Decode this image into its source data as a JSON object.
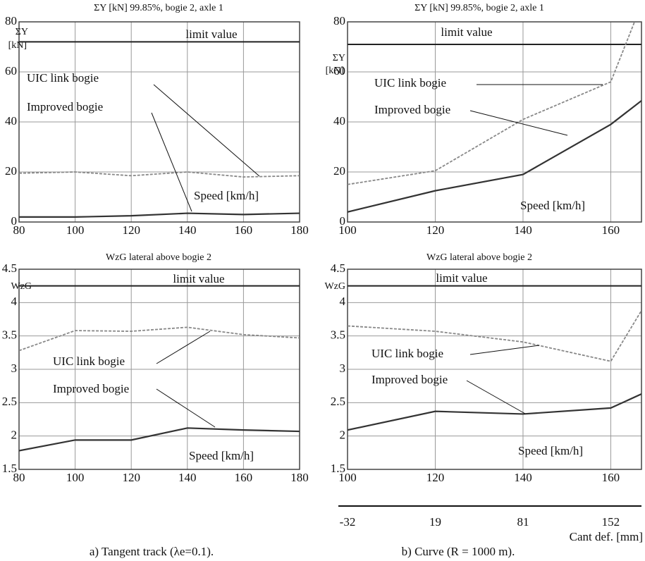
{
  "chart_data": [
    {
      "type": "line",
      "title": "ΣY [kN] 99.85%, bogie 2, axle 1",
      "y_label": [
        "ΣY",
        "[kN]"
      ],
      "x": [
        80,
        100,
        120,
        140,
        160,
        180
      ],
      "xlim": [
        80,
        180
      ],
      "xticks": [
        80,
        100,
        120,
        140,
        160,
        180
      ],
      "ylim": [
        0,
        80
      ],
      "yticks": [
        0,
        20,
        40,
        60,
        80
      ],
      "grid": true,
      "limit_line": {
        "label": "limit value",
        "value": 72
      },
      "series": [
        {
          "name": "UIC link bogie",
          "color": "#888888",
          "dashed": true,
          "values": [
            19.5,
            20,
            18.5,
            20,
            18,
            18.5
          ]
        },
        {
          "name": "Improved bogie",
          "color": "#333333",
          "dashed": false,
          "values": [
            2,
            2,
            2.5,
            3.5,
            3,
            3.5
          ]
        }
      ],
      "x_label": "Speed [km/h]"
    },
    {
      "type": "line",
      "title": "ΣY [kN] 99.85%, bogie 2, axle 1",
      "y_label": [
        "ΣY",
        "[kN]"
      ],
      "x": [
        100,
        120,
        140,
        160,
        167
      ],
      "xlim": [
        100,
        167
      ],
      "xticks": [
        100,
        120,
        140,
        160
      ],
      "ylim": [
        0,
        80
      ],
      "yticks": [
        0,
        20,
        40,
        60,
        80
      ],
      "grid": true,
      "limit_line": {
        "label": "limit value",
        "value": 71
      },
      "series": [
        {
          "name": "UIC link bogie",
          "color": "#888888",
          "dashed": true,
          "values": [
            15,
            20.5,
            41,
            56,
            87
          ]
        },
        {
          "name": "Improved bogie",
          "color": "#333333",
          "dashed": false,
          "values": [
            4,
            12.5,
            19,
            39,
            48.5
          ]
        }
      ],
      "x_label": "Speed [km/h]"
    },
    {
      "type": "line",
      "title": "WzG lateral above bogie 2",
      "y_label": [
        "WzG"
      ],
      "x": [
        80,
        100,
        120,
        140,
        160,
        180
      ],
      "xlim": [
        80,
        180
      ],
      "xticks": [
        80,
        100,
        120,
        140,
        160,
        180
      ],
      "ylim": [
        1.5,
        4.5
      ],
      "yticks": [
        1.5,
        2,
        2.5,
        3,
        3.5,
        4,
        4.5
      ],
      "grid": true,
      "limit_line": {
        "label": "limit value",
        "value": 4.25
      },
      "series": [
        {
          "name": "UIC link bogie",
          "color": "#888888",
          "dashed": true,
          "values": [
            3.28,
            3.58,
            3.57,
            3.63,
            3.52,
            3.47
          ]
        },
        {
          "name": "Improved bogie",
          "color": "#333333",
          "dashed": false,
          "values": [
            1.78,
            1.94,
            1.94,
            2.12,
            2.09,
            2.07
          ]
        }
      ],
      "x_label": "Speed [km/h]"
    },
    {
      "type": "line",
      "title": "WzG lateral above bogie 2",
      "y_label": [
        "WzG"
      ],
      "x": [
        100,
        120,
        140,
        160,
        167
      ],
      "xlim": [
        100,
        167
      ],
      "xticks": [
        100,
        120,
        140,
        160
      ],
      "ylim": [
        1.5,
        4.5
      ],
      "yticks": [
        1.5,
        2,
        2.5,
        3,
        3.5,
        4,
        4.5
      ],
      "grid": true,
      "limit_line": {
        "label": "limit value",
        "value": 4.25
      },
      "series": [
        {
          "name": "UIC link bogie",
          "color": "#888888",
          "dashed": true,
          "values": [
            3.65,
            3.57,
            3.41,
            3.12,
            3.88
          ]
        },
        {
          "name": "Improved bogie",
          "color": "#333333",
          "dashed": false,
          "values": [
            2.09,
            2.37,
            2.33,
            2.42,
            2.63
          ]
        }
      ],
      "x_label": "Speed [km/h]",
      "x2_ticks": [
        -32,
        19,
        81,
        152
      ],
      "x2_label": "Cant def. [mm]"
    }
  ],
  "captions": [
    "a)   Tangent track (λe=0.1).",
    "b)   Curve (R = 1000 m)."
  ]
}
